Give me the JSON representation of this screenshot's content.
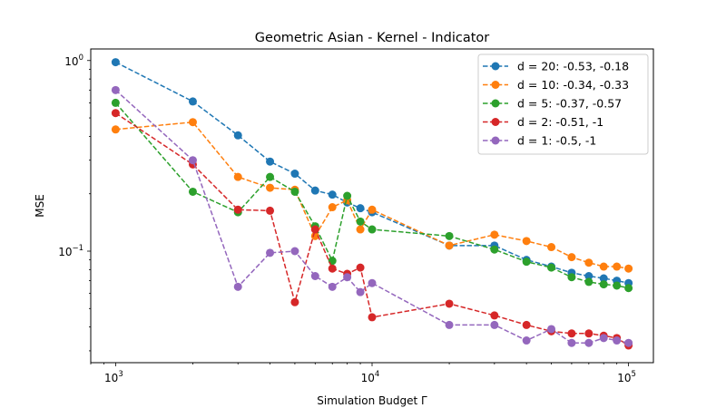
{
  "chart_data": {
    "type": "line",
    "title": "Geometric Asian - Kernel - Indicator",
    "xlabel": "Simulation Budget Γ",
    "ylabel": "MSE",
    "xscale": "log",
    "yscale": "log",
    "xlim": [
      800,
      125000
    ],
    "ylim": [
      0.026,
      1.15
    ],
    "xticks": [
      {
        "value": 1000,
        "base": "10",
        "exp": "3"
      },
      {
        "value": 10000,
        "base": "10",
        "exp": "4"
      },
      {
        "value": 100000,
        "base": "10",
        "exp": "5"
      }
    ],
    "yticks": [
      {
        "value": 0.1,
        "base": "10",
        "exp": "−1"
      },
      {
        "value": 1,
        "base": "10",
        "exp": "0"
      }
    ],
    "grid": false,
    "legend_position": "top-right",
    "x": [
      1000,
      2000,
      3000,
      4000,
      5000,
      6000,
      7000,
      8000,
      9000,
      10000,
      20000,
      30000,
      40000,
      50000,
      60000,
      70000,
      80000,
      90000,
      100000
    ],
    "series": [
      {
        "name": "d = 20: -0.53, -0.18",
        "color": "#1f77b4",
        "values": [
          0.98,
          0.61,
          0.405,
          0.295,
          0.255,
          0.208,
          0.198,
          0.18,
          0.168,
          0.16,
          0.107,
          0.107,
          0.09,
          0.083,
          0.077,
          0.074,
          0.072,
          0.07,
          0.068
        ]
      },
      {
        "name": "d = 10: -0.34, -0.33",
        "color": "#ff7f0e",
        "values": [
          0.435,
          0.475,
          0.245,
          0.215,
          0.21,
          0.12,
          0.17,
          0.185,
          0.13,
          0.165,
          0.107,
          0.122,
          0.113,
          0.105,
          0.093,
          0.087,
          0.083,
          0.083,
          0.081
        ]
      },
      {
        "name": "d = 5: -0.37, -0.57",
        "color": "#2ca02c",
        "values": [
          0.6,
          0.205,
          0.16,
          0.245,
          0.205,
          0.135,
          0.089,
          0.195,
          0.143,
          0.13,
          0.12,
          0.102,
          0.088,
          0.082,
          0.073,
          0.069,
          0.067,
          0.066,
          0.064
        ]
      },
      {
        "name": "d = 2: -0.51, -1",
        "color": "#d62728",
        "values": [
          0.53,
          0.285,
          0.165,
          0.163,
          0.054,
          0.13,
          0.081,
          0.076,
          0.082,
          0.045,
          0.053,
          0.046,
          0.041,
          0.038,
          0.037,
          0.037,
          0.036,
          0.035,
          0.032
        ]
      },
      {
        "name": "d = 1: -0.5, -1",
        "color": "#9467bd",
        "values": [
          0.7,
          0.3,
          0.065,
          0.098,
          0.1,
          0.074,
          0.065,
          0.073,
          0.061,
          0.068,
          0.041,
          0.041,
          0.034,
          0.039,
          0.033,
          0.033,
          0.035,
          0.034,
          0.033
        ]
      }
    ]
  }
}
